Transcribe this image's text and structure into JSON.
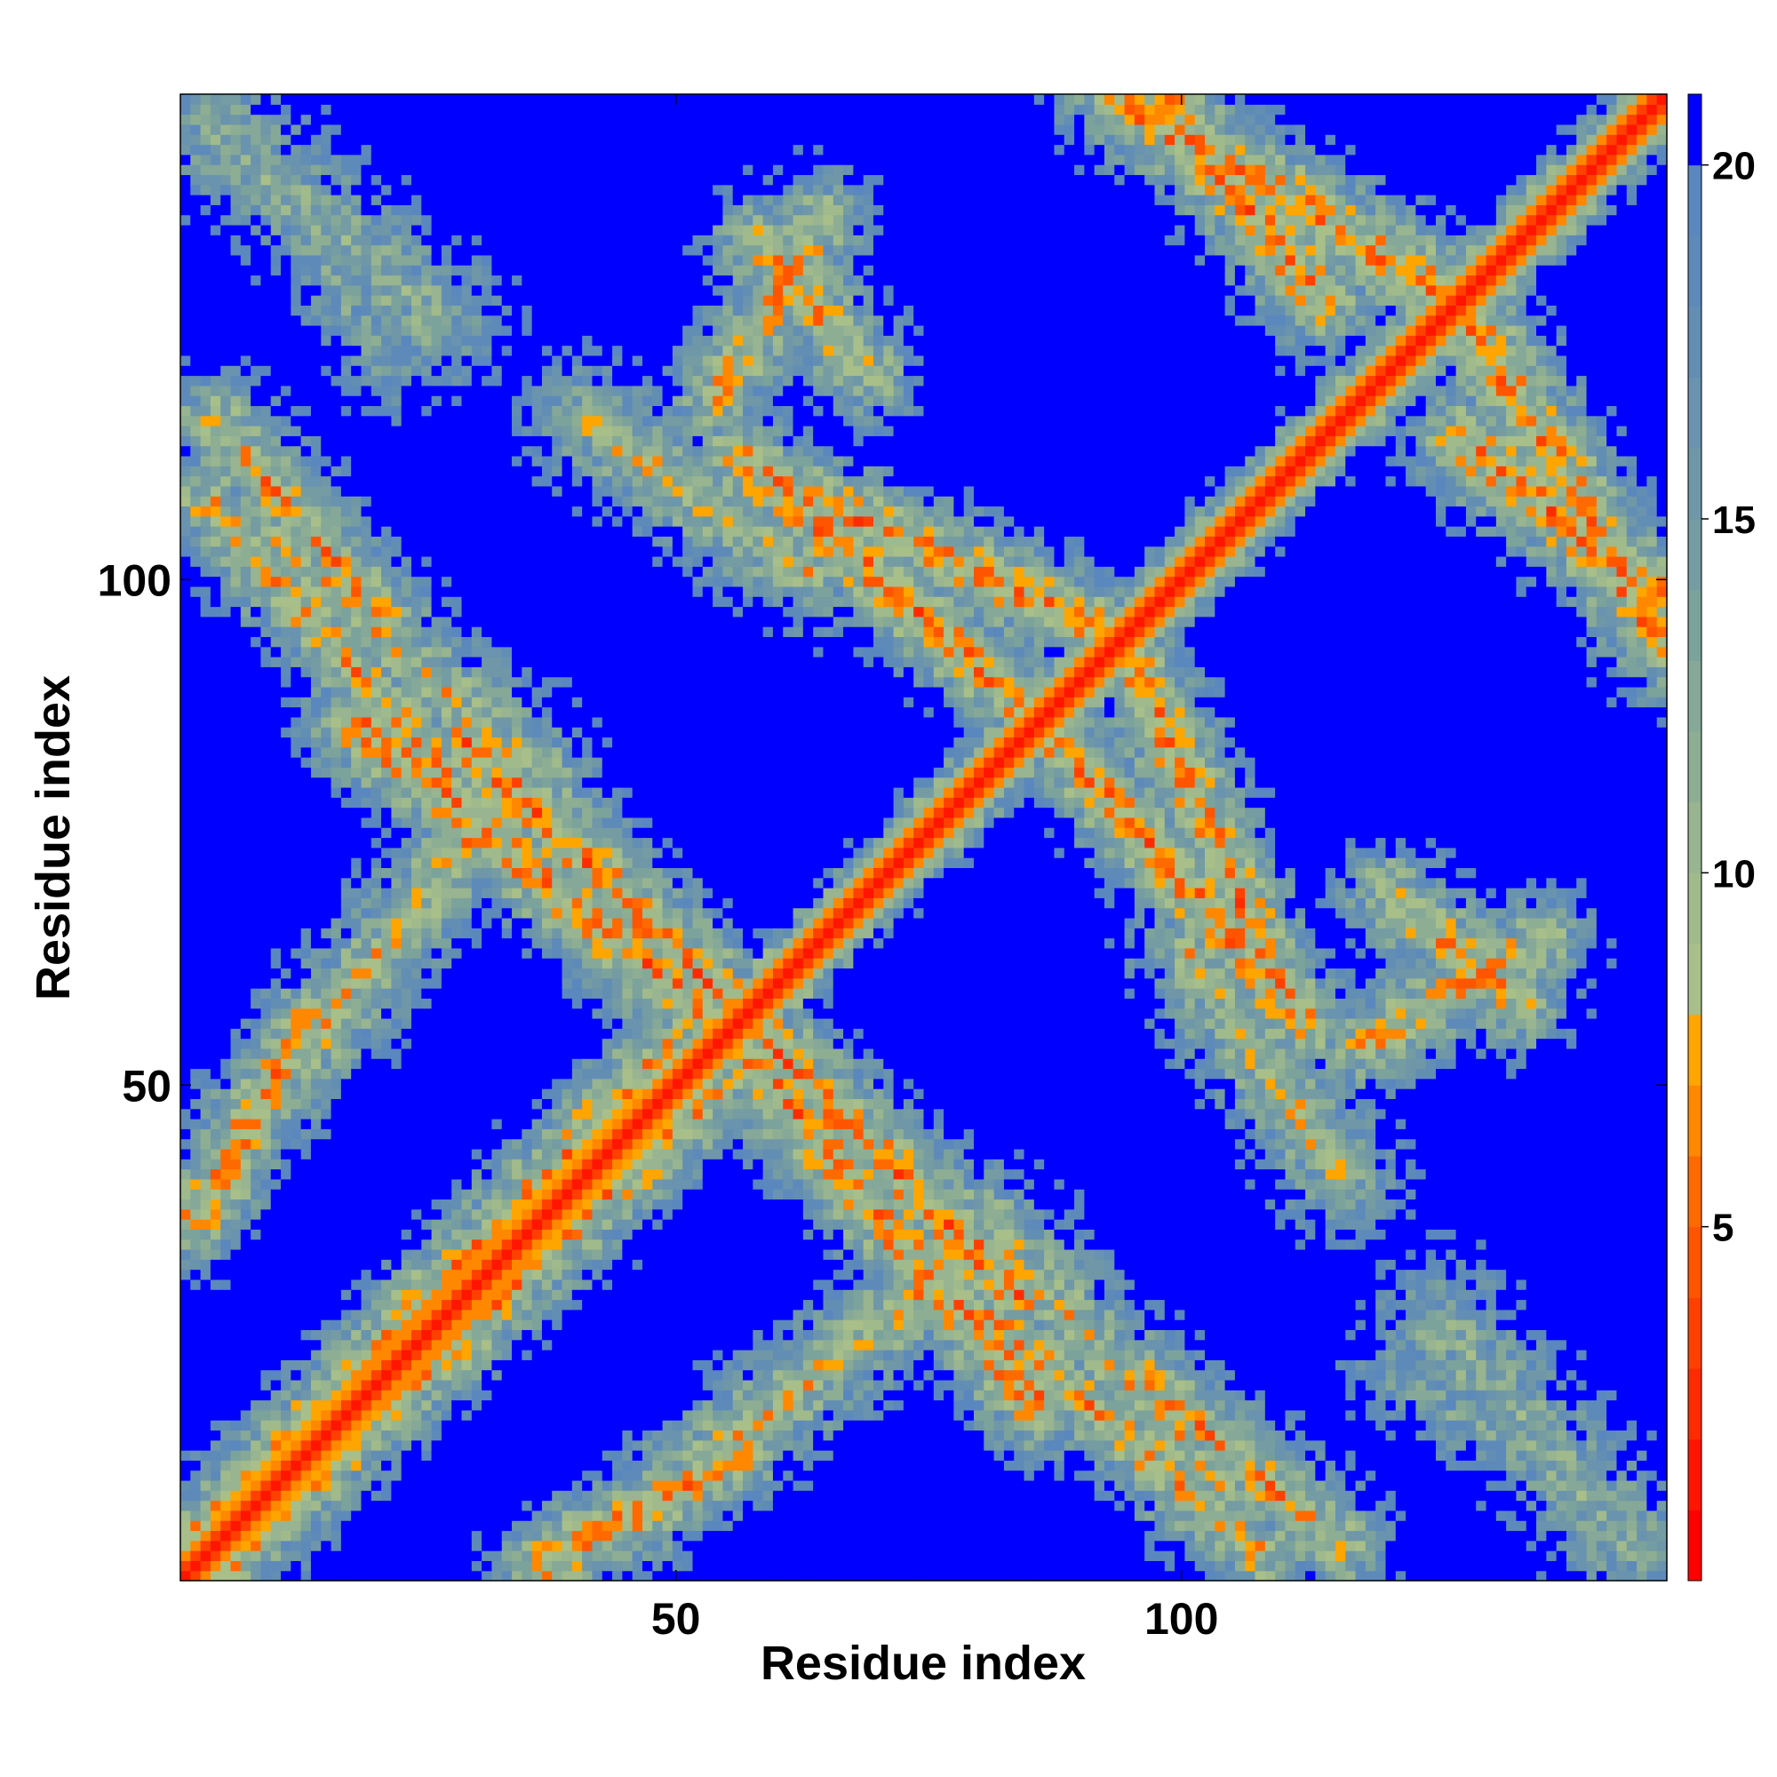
{
  "chart_data": {
    "type": "heatmap",
    "title": "",
    "xlabel": "Residue index",
    "ylabel": "Residue index",
    "n_residues": 148,
    "xlim": [
      1,
      148
    ],
    "ylim": [
      1,
      148
    ],
    "x_ticks": [
      50,
      100
    ],
    "y_ticks": [
      50,
      100
    ],
    "x_tick_labels": [
      "50",
      "100"
    ],
    "y_tick_labels": [
      "50",
      "100"
    ],
    "colorbar": {
      "min": 0,
      "max": 21,
      "ticks": [
        5,
        10,
        15,
        20
      ],
      "tick_labels": [
        "5",
        "10",
        "15",
        "20"
      ],
      "levels": [
        {
          "upper": 1,
          "color": "#ff0000"
        },
        {
          "upper": 2,
          "color": "#ff1500"
        },
        {
          "upper": 3,
          "color": "#ff2b00"
        },
        {
          "upper": 4,
          "color": "#ff4000"
        },
        {
          "upper": 5,
          "color": "#ff5500"
        },
        {
          "upper": 6,
          "color": "#ff6a00"
        },
        {
          "upper": 7,
          "color": "#ff8800"
        },
        {
          "upper": 8,
          "color": "#ffa500"
        },
        {
          "upper": 9,
          "color": "#a8bf8a"
        },
        {
          "upper": 10,
          "color": "#a0ba8c"
        },
        {
          "upper": 11,
          "color": "#98b490"
        },
        {
          "upper": 12,
          "color": "#8eae94"
        },
        {
          "upper": 13,
          "color": "#85a898"
        },
        {
          "upper": 14,
          "color": "#7ca29c"
        },
        {
          "upper": 15,
          "color": "#749ca2"
        },
        {
          "upper": 16,
          "color": "#6f97a8"
        },
        {
          "upper": 17,
          "color": "#6993ae"
        },
        {
          "upper": 18,
          "color": "#638eb4"
        },
        {
          "upper": 19,
          "color": "#5e8aba"
        },
        {
          "upper": 20,
          "color": "#5a87be"
        },
        {
          "upper": 21,
          "color": "#0000ff"
        }
      ]
    },
    "colors": {
      "background_far": "#0000ff",
      "near": "#ff0000"
    },
    "contact_bands": [
      {
        "x": [
          2,
          52
        ],
        "y": [
          0,
          48
        ],
        "min_distance": 6.5,
        "width": 5.5
      },
      {
        "x": [
          1,
          12
        ],
        "y": [
          35,
          55
        ],
        "min_distance": 6.5,
        "width": 5
      },
      {
        "x": [
          6,
          32
        ],
        "y": [
          45,
          78
        ],
        "min_distance": 9,
        "width": 7
      },
      {
        "x": [
          28,
          58
        ],
        "y": [
          83,
          53
        ],
        "min_distance": 6.5,
        "width": 6
      },
      {
        "x": [
          55,
          85
        ],
        "y": [
          53,
          17
        ],
        "min_distance": 6.5,
        "width": 6
      },
      {
        "x": [
          86,
          112
        ],
        "y": [
          84,
          55
        ],
        "min_distance": 6.5,
        "width": 5.5
      },
      {
        "x": [
          63,
          92
        ],
        "y": [
          107,
          94
        ],
        "min_distance": 6.5,
        "width": 5.5
      },
      {
        "x": [
          2,
          26
        ],
        "y": [
          107,
          80
        ],
        "min_distance": 8,
        "width": 6
      },
      {
        "x": [
          40,
          62
        ],
        "y": [
          115,
          100
        ],
        "min_distance": 10,
        "width": 8
      },
      {
        "x": [
          95,
          115
        ],
        "y": [
          20,
          3
        ],
        "min_distance": 8,
        "width": 6
      },
      {
        "x": [
          57,
          68
        ],
        "y": [
          133,
          120
        ],
        "min_distance": 8,
        "width": 6
      },
      {
        "x": [
          93,
          125
        ],
        "y": [
          147,
          128
        ],
        "min_distance": 6.5,
        "width": 6
      },
      {
        "x": [
          127,
          148
        ],
        "y": [
          113,
          97
        ],
        "min_distance": 6.5,
        "width": 6
      },
      {
        "x": [
          117,
          135
        ],
        "y": [
          53,
          63
        ],
        "min_distance": 8,
        "width": 6
      },
      {
        "x": [
          80,
          104
        ],
        "y": [
          35,
          8
        ],
        "min_distance": 10,
        "width": 8
      },
      {
        "x": [
          2,
          25
        ],
        "y": [
          145,
          125
        ],
        "min_distance": 12,
        "width": 10
      },
      {
        "x": [
          120,
          148
        ],
        "y": [
          20,
          3
        ],
        "min_distance": 14,
        "width": 8
      }
    ]
  }
}
